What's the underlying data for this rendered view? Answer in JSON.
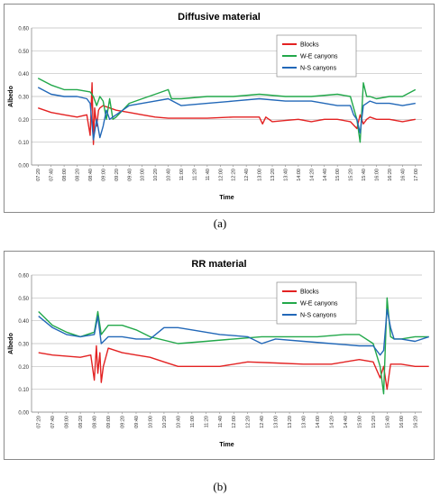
{
  "chart_data": [
    {
      "type": "line",
      "title": "Diffusive material",
      "xlabel": "Time",
      "ylabel": "Albedo",
      "ylim": [
        0,
        0.6
      ],
      "yticks": [
        "0.00",
        "0.10",
        "0.20",
        "0.30",
        "0.40",
        "0.50",
        "0.60"
      ],
      "xticks": [
        "07:20",
        "07:40",
        "08:00",
        "08:20",
        "08:40",
        "09:00",
        "09:20",
        "09:40",
        "10:00",
        "10:20",
        "10:40",
        "11:00",
        "11:20",
        "11:40",
        "12:00",
        "12:20",
        "12:40",
        "13:00",
        "13:20",
        "13:40",
        "14:00",
        "14:20",
        "14:40",
        "15:00",
        "15:20",
        "15:40",
        "16:00",
        "16:20",
        "16:40",
        "17:00"
      ],
      "legend_position": "top-right",
      "grid": true,
      "series": [
        {
          "name": "Blocks",
          "color": "#e32222",
          "x": [
            "07:20",
            "07:40",
            "08:00",
            "08:20",
            "08:35",
            "08:40",
            "08:43",
            "08:45",
            "08:47",
            "08:50",
            "08:53",
            "08:55",
            "09:00",
            "09:10",
            "09:20",
            "09:40",
            "10:00",
            "10:20",
            "10:40",
            "11:00",
            "11:40",
            "12:20",
            "13:00",
            "13:05",
            "13:10",
            "13:20",
            "13:40",
            "14:00",
            "14:20",
            "14:40",
            "15:00",
            "15:20",
            "15:30",
            "15:35",
            "15:40",
            "15:45",
            "15:50",
            "16:00",
            "16:20",
            "16:40",
            "17:00"
          ],
          "values": [
            0.25,
            0.23,
            0.22,
            0.21,
            0.22,
            0.13,
            0.36,
            0.09,
            0.25,
            0.17,
            0.24,
            0.25,
            0.26,
            0.25,
            0.24,
            0.23,
            0.22,
            0.21,
            0.205,
            0.205,
            0.205,
            0.21,
            0.21,
            0.18,
            0.21,
            0.19,
            0.195,
            0.2,
            0.19,
            0.2,
            0.2,
            0.19,
            0.16,
            0.22,
            0.18,
            0.2,
            0.21,
            0.2,
            0.2,
            0.19,
            0.2
          ]
        },
        {
          "name": "W-E canyons",
          "color": "#22a84a",
          "x": [
            "07:20",
            "07:40",
            "08:00",
            "08:20",
            "08:40",
            "08:45",
            "08:50",
            "08:55",
            "09:00",
            "09:05",
            "09:10",
            "09:15",
            "09:20",
            "09:40",
            "10:00",
            "10:20",
            "10:40",
            "10:45",
            "11:00",
            "11:40",
            "12:20",
            "13:00",
            "13:40",
            "14:20",
            "15:00",
            "15:20",
            "15:30",
            "15:35",
            "15:40",
            "15:45",
            "15:50",
            "16:00",
            "16:20",
            "16:40",
            "17:00"
          ],
          "values": [
            0.38,
            0.35,
            0.33,
            0.33,
            0.32,
            0.3,
            0.26,
            0.3,
            0.28,
            0.2,
            0.29,
            0.2,
            0.21,
            0.27,
            0.29,
            0.31,
            0.33,
            0.29,
            0.29,
            0.3,
            0.3,
            0.31,
            0.3,
            0.3,
            0.31,
            0.3,
            0.2,
            0.1,
            0.36,
            0.3,
            0.3,
            0.29,
            0.3,
            0.3,
            0.33
          ]
        },
        {
          "name": "N-S canyons",
          "color": "#2268b8",
          "x": [
            "07:20",
            "07:40",
            "08:00",
            "08:20",
            "08:35",
            "08:40",
            "08:45",
            "08:50",
            "08:55",
            "09:00",
            "09:05",
            "09:10",
            "09:20",
            "09:40",
            "10:00",
            "10:20",
            "10:40",
            "11:00",
            "11:40",
            "12:20",
            "13:00",
            "13:40",
            "14:20",
            "15:00",
            "15:20",
            "15:25",
            "15:30",
            "15:35",
            "15:40",
            "15:45",
            "15:50",
            "16:00",
            "16:20",
            "16:40",
            "17:00"
          ],
          "values": [
            0.34,
            0.31,
            0.3,
            0.3,
            0.29,
            0.27,
            0.11,
            0.2,
            0.12,
            0.17,
            0.24,
            0.2,
            0.22,
            0.26,
            0.27,
            0.28,
            0.29,
            0.26,
            0.27,
            0.28,
            0.29,
            0.28,
            0.28,
            0.26,
            0.26,
            0.22,
            0.2,
            0.14,
            0.26,
            0.27,
            0.28,
            0.27,
            0.27,
            0.26,
            0.27
          ]
        }
      ]
    },
    {
      "type": "line",
      "title": "RR material",
      "xlabel": "Time",
      "ylabel": "Albedo",
      "ylim": [
        0,
        0.6
      ],
      "yticks": [
        "0.00",
        "0.10",
        "0.20",
        "0.30",
        "0.40",
        "0.50",
        "0.60"
      ],
      "xticks": [
        "07:20",
        "07:40",
        "08:00",
        "08:20",
        "08:40",
        "09:00",
        "09:20",
        "09:40",
        "10:00",
        "10:20",
        "10:40",
        "11:00",
        "11:20",
        "11:40",
        "12:00",
        "12:20",
        "12:40",
        "13:00",
        "13:20",
        "13:40",
        "14:00",
        "14:20",
        "14:40",
        "15:00",
        "15:20",
        "15:40",
        "16:00",
        "16:20"
      ],
      "legend_position": "top-right",
      "grid": true,
      "series": [
        {
          "name": "Blocks",
          "color": "#e32222",
          "x": [
            "07:20",
            "07:40",
            "08:00",
            "08:20",
            "08:35",
            "08:40",
            "08:43",
            "08:45",
            "08:48",
            "08:50",
            "08:53",
            "09:00",
            "09:10",
            "09:20",
            "09:40",
            "10:00",
            "10:20",
            "10:40",
            "11:00",
            "11:40",
            "12:20",
            "13:00",
            "13:40",
            "14:20",
            "15:00",
            "15:20",
            "15:30",
            "15:35",
            "15:40",
            "15:45",
            "16:00",
            "16:20",
            "16:40"
          ],
          "values": [
            0.26,
            0.25,
            0.245,
            0.24,
            0.25,
            0.14,
            0.29,
            0.17,
            0.26,
            0.13,
            0.2,
            0.28,
            0.27,
            0.26,
            0.25,
            0.24,
            0.22,
            0.2,
            0.2,
            0.2,
            0.22,
            0.215,
            0.21,
            0.21,
            0.23,
            0.22,
            0.15,
            0.2,
            0.1,
            0.21,
            0.21,
            0.2,
            0.2
          ]
        },
        {
          "name": "W-E canyons",
          "color": "#22a84a",
          "x": [
            "07:20",
            "07:40",
            "08:00",
            "08:20",
            "08:40",
            "08:45",
            "08:50",
            "08:55",
            "09:00",
            "09:20",
            "09:40",
            "10:00",
            "10:40",
            "11:20",
            "12:00",
            "12:40",
            "13:20",
            "14:00",
            "14:40",
            "15:00",
            "15:20",
            "15:30",
            "15:35",
            "15:40",
            "15:45",
            "15:50",
            "16:00",
            "16:20",
            "16:40"
          ],
          "values": [
            0.44,
            0.38,
            0.35,
            0.33,
            0.35,
            0.44,
            0.34,
            0.36,
            0.38,
            0.38,
            0.36,
            0.33,
            0.3,
            0.31,
            0.32,
            0.33,
            0.33,
            0.33,
            0.34,
            0.34,
            0.3,
            0.2,
            0.08,
            0.5,
            0.33,
            0.32,
            0.32,
            0.33,
            0.33
          ]
        },
        {
          "name": "N-S canyons",
          "color": "#2268b8",
          "x": [
            "07:20",
            "07:40",
            "08:00",
            "08:20",
            "08:40",
            "08:45",
            "08:50",
            "09:00",
            "09:20",
            "09:40",
            "10:00",
            "10:20",
            "10:40",
            "11:00",
            "11:40",
            "12:20",
            "12:40",
            "13:00",
            "13:40",
            "14:20",
            "15:00",
            "15:20",
            "15:30",
            "15:35",
            "15:40",
            "15:45",
            "15:50",
            "16:00",
            "16:20",
            "16:40"
          ],
          "values": [
            0.42,
            0.37,
            0.34,
            0.33,
            0.34,
            0.42,
            0.3,
            0.33,
            0.33,
            0.32,
            0.32,
            0.37,
            0.37,
            0.36,
            0.34,
            0.33,
            0.3,
            0.32,
            0.31,
            0.3,
            0.29,
            0.29,
            0.25,
            0.27,
            0.45,
            0.37,
            0.32,
            0.32,
            0.31,
            0.33
          ]
        }
      ]
    }
  ],
  "captions": [
    "(a)",
    "(b)"
  ]
}
